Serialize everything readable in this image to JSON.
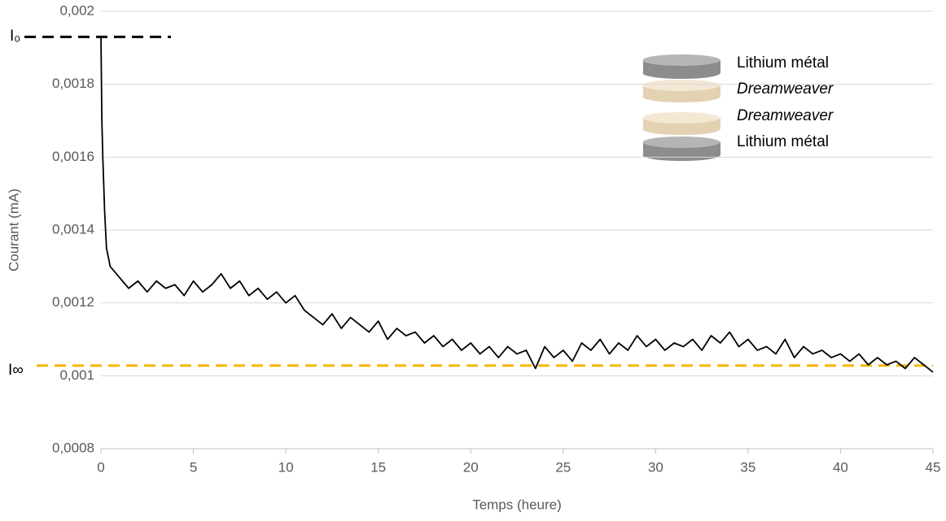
{
  "chart_data": {
    "type": "line",
    "x_label": "Temps (heure)",
    "y_label": "Courant (mA)",
    "xlim": [
      0,
      45
    ],
    "xticks": [
      0,
      5,
      10,
      15,
      20,
      25,
      30,
      35,
      40,
      45
    ],
    "ylim": [
      0.0008,
      0.002
    ],
    "yticks": [
      {
        "value": 0.0008,
        "label": "0,0008"
      },
      {
        "value": 0.001,
        "label": "0,001"
      },
      {
        "value": 0.0012,
        "label": "0,0012"
      },
      {
        "value": 0.0014,
        "label": "0,0014"
      },
      {
        "value": 0.0016,
        "label": "0,0016"
      },
      {
        "value": 0.0018,
        "label": "0,0018"
      },
      {
        "value": 0.002,
        "label": "0,002"
      }
    ],
    "grid": true,
    "x": [
      0,
      0.05,
      0.1,
      0.2,
      0.3,
      0.5,
      1,
      1.5,
      2,
      2.5,
      3,
      3.5,
      4,
      4.5,
      5,
      5.5,
      6,
      6.5,
      7,
      7.5,
      8,
      8.5,
      9,
      9.5,
      10,
      10.5,
      11,
      11.5,
      12,
      12.5,
      13,
      13.5,
      14,
      14.5,
      15,
      15.5,
      16,
      16.5,
      17,
      17.5,
      18,
      18.5,
      19,
      19.5,
      20,
      20.5,
      21,
      21.5,
      22,
      22.5,
      23,
      23.5,
      24,
      24.5,
      25,
      25.5,
      26,
      26.5,
      27,
      27.5,
      28,
      28.5,
      29,
      29.5,
      30,
      30.5,
      31,
      31.5,
      32,
      32.5,
      33,
      33.5,
      34,
      34.5,
      35,
      35.5,
      36,
      36.5,
      37,
      37.5,
      38,
      38.5,
      39,
      39.5,
      40,
      40.5,
      41,
      41.5,
      42,
      42.5,
      43,
      43.5,
      44,
      44.5,
      45
    ],
    "series": [
      {
        "color": "#000000",
        "values": [
          0.00193,
          0.0017,
          0.0016,
          0.00145,
          0.00135,
          0.0013,
          0.00127,
          0.00124,
          0.00126,
          0.00123,
          0.00126,
          0.00124,
          0.00125,
          0.00122,
          0.00126,
          0.00123,
          0.00125,
          0.00128,
          0.00124,
          0.00126,
          0.00122,
          0.00124,
          0.00121,
          0.00123,
          0.0012,
          0.00122,
          0.00118,
          0.00116,
          0.00114,
          0.00117,
          0.00113,
          0.00116,
          0.00114,
          0.00112,
          0.00115,
          0.0011,
          0.00113,
          0.00111,
          0.00112,
          0.00109,
          0.00111,
          0.00108,
          0.0011,
          0.00107,
          0.00109,
          0.00106,
          0.00108,
          0.00105,
          0.00108,
          0.00106,
          0.00107,
          0.00102,
          0.00108,
          0.00105,
          0.00107,
          0.00104,
          0.00109,
          0.00107,
          0.0011,
          0.00106,
          0.00109,
          0.00107,
          0.00111,
          0.00108,
          0.0011,
          0.00107,
          0.00109,
          0.00108,
          0.0011,
          0.00107,
          0.00111,
          0.00109,
          0.00112,
          0.00108,
          0.0011,
          0.00107,
          0.00108,
          0.00106,
          0.0011,
          0.00105,
          0.00108,
          0.00106,
          0.00107,
          0.00105,
          0.00106,
          0.00104,
          0.00106,
          0.00103,
          0.00105,
          0.00103,
          0.00104,
          0.00102,
          0.00105,
          0.00103,
          0.00101
        ]
      }
    ],
    "reference_lines": [
      {
        "label": "I₀",
        "value": 0.00193,
        "color": "#000000"
      },
      {
        "label": "I∞",
        "value": 0.001028,
        "color": "#f5b800"
      }
    ],
    "stack_labels": [
      "Lithium métal",
      "Dreamweaver",
      "Dreamweaver",
      "Lithium métal"
    ]
  }
}
